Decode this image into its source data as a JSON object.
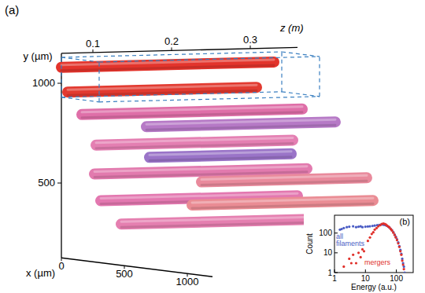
{
  "chart_data": [
    {
      "type": "3d_tubes",
      "title": "(a)",
      "x_label": "x (µm)",
      "y_label": "y (µm)",
      "z_label": "z (m)",
      "xlim": [
        0,
        1200
      ],
      "ylim": [
        125,
        1150
      ],
      "zlim": [
        0.06,
        0.36
      ],
      "xticks": [
        0,
        500,
        1000
      ],
      "yticks": [
        500,
        1000
      ],
      "zticks": [
        0.1,
        0.2,
        0.3
      ],
      "highlight_box": {
        "x": [
          0,
          300
        ],
        "y": [
          930,
          1130
        ],
        "z": [
          0.06,
          0.34
        ]
      },
      "filaments": [
        {
          "x": 0,
          "y": 1080,
          "z": [
            0.06,
            0.33
          ],
          "color": "#e3342c"
        },
        {
          "x": 50,
          "y": 960,
          "z": [
            0.06,
            0.3
          ],
          "color": "#e23a30"
        },
        {
          "x": 100,
          "y": 850,
          "z": [
            0.07,
            0.35
          ],
          "color": "#df6fa8"
        },
        {
          "x": 300,
          "y": 800,
          "z": [
            0.12,
            0.36
          ],
          "color": "#b679c6"
        },
        {
          "x": 150,
          "y": 700,
          "z": [
            0.08,
            0.33
          ],
          "color": "#e47fb2"
        },
        {
          "x": 450,
          "y": 660,
          "z": [
            0.1,
            0.28
          ],
          "color": "#9a74c8"
        },
        {
          "x": 200,
          "y": 560,
          "z": [
            0.07,
            0.34
          ],
          "color": "#e27aae"
        },
        {
          "x": 550,
          "y": 540,
          "z": [
            0.15,
            0.36
          ],
          "color": "#e98a9c"
        },
        {
          "x": 250,
          "y": 430,
          "z": [
            0.07,
            0.32
          ],
          "color": "#e378b0"
        },
        {
          "x": 600,
          "y": 430,
          "z": [
            0.13,
            0.36
          ],
          "color": "#ea8c94"
        },
        {
          "x": 350,
          "y": 320,
          "z": [
            0.08,
            0.33
          ],
          "color": "#e57fb0"
        }
      ]
    },
    {
      "type": "scatter",
      "title": "(b)",
      "x_label": "Energy (a.u.)",
      "y_label": "Count",
      "log": true,
      "legend": "left",
      "xlim": [
        1,
        350
      ],
      "ylim": [
        1,
        800
      ],
      "xticks": [
        1,
        10,
        100
      ],
      "yticks": [
        1,
        10,
        100
      ],
      "series": [
        {
          "name": "all filaments",
          "color": "#4a5cc4",
          "x": [
            1.5,
            1.7,
            2,
            2.5,
            3,
            4,
            5,
            6,
            7,
            8,
            10,
            12,
            14,
            17,
            20,
            24,
            28,
            32,
            36,
            40,
            45,
            50,
            55,
            60,
            66,
            72,
            80,
            88,
            96,
            105,
            115,
            125,
            135,
            145,
            155,
            165,
            175,
            185
          ],
          "values": [
            150,
            160,
            180,
            200,
            210,
            220,
            200,
            210,
            220,
            200,
            210,
            215,
            220,
            230,
            240,
            250,
            260,
            270,
            270,
            260,
            250,
            230,
            210,
            190,
            160,
            140,
            110,
            85,
            65,
            48,
            34,
            22,
            14,
            9,
            5,
            3,
            2,
            1
          ]
        },
        {
          "name": "mergers",
          "color": "#e0302a",
          "x": [
            2,
            3,
            3.5,
            4,
            5,
            6,
            7,
            8,
            9,
            12,
            14,
            16,
            18,
            20,
            23,
            26,
            30,
            34,
            38,
            42,
            46,
            50,
            55,
            60,
            66,
            72,
            80,
            88,
            96,
            105,
            115,
            125,
            135,
            145,
            155,
            165,
            175
          ],
          "values": [
            2,
            5,
            3,
            8,
            3,
            10,
            6,
            15,
            12,
            40,
            60,
            90,
            110,
            150,
            180,
            220,
            250,
            290,
            300,
            290,
            270,
            240,
            215,
            190,
            160,
            135,
            105,
            80,
            60,
            44,
            30,
            20,
            12,
            8,
            4,
            2.5,
            1.5
          ]
        }
      ]
    }
  ]
}
